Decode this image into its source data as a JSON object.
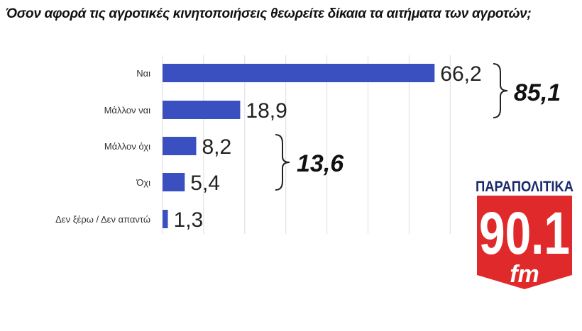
{
  "chart_data": {
    "type": "bar",
    "orientation": "horizontal",
    "title": "Όσον αφορά τις αγροτικές κινητοποιήσεις θεωρείτε δίκαια τα αιτήματα των αγροτών;",
    "categories": [
      "Ναι",
      "Μάλλον ναι",
      "Μάλλον όχι",
      "Όχι",
      "Δεν ξέρω / Δεν απαντώ"
    ],
    "values": [
      66.2,
      18.9,
      8.2,
      5.4,
      1.3
    ],
    "value_labels": [
      "66,2",
      "18,9",
      "8,2",
      "5,4",
      "1,3"
    ],
    "xlim": [
      0,
      70
    ],
    "grid": true,
    "bar_color": "#3a50c0",
    "annotations": [
      {
        "label": "85,1",
        "groups": [
          "Ναι",
          "Μάλλον ναι"
        ]
      },
      {
        "label": "13,6",
        "groups": [
          "Μάλλον όχι",
          "Όχι"
        ]
      }
    ]
  },
  "logo": {
    "brand": "ΠΑΡΑΠΟΛΙΤΙΚΑ",
    "frequency": "90.1",
    "band": "fm",
    "color": "#e0292b"
  }
}
